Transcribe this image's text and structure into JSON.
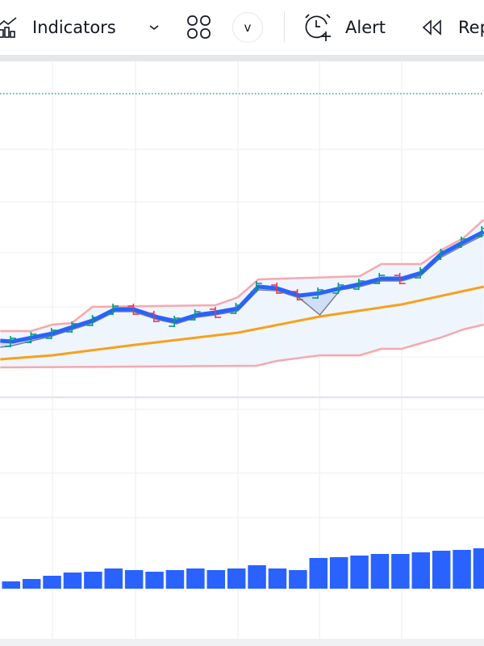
{
  "toolbar": {
    "indicators_label": "Indicators",
    "template_button_label": "v",
    "alert_label": "Alert",
    "replay_label": "Rep",
    "icons": [
      "indicators-icon",
      "chevron-down-icon",
      "layout-grid-icon",
      "alarm-clock-plus-icon",
      "rewind-icon"
    ]
  },
  "chart_data": {
    "type": "ohlc",
    "grid": true,
    "colors": {
      "up": "#089981",
      "down": "#f23645",
      "ma_fast": "#2962ff",
      "ma_slow": "#f7a01c",
      "band": "#f7a8ad",
      "band_fill": "#eef5fc",
      "volume": "#2962ff",
      "price_line": "#26a69a"
    },
    "price_line": 384,
    "candles": [
      {
        "o": 71,
        "c": 81
      },
      {
        "o": 76,
        "c": 86
      },
      {
        "o": 81,
        "c": 91
      },
      {
        "o": 89,
        "c": 99
      },
      {
        "o": 97,
        "c": 107
      },
      {
        "o": 111,
        "c": 121
      },
      {
        "o": 121,
        "c": 111
      },
      {
        "o": 112,
        "c": 102
      },
      {
        "o": 96,
        "c": 106
      },
      {
        "o": 104,
        "c": 114
      },
      {
        "o": 117,
        "c": 107
      },
      {
        "o": 112,
        "c": 122
      },
      {
        "o": 139,
        "c": 149
      },
      {
        "o": 147,
        "c": 137
      },
      {
        "o": 139,
        "c": 129
      },
      {
        "o": 131,
        "c": 141
      },
      {
        "o": 137,
        "c": 147
      },
      {
        "o": 142,
        "c": 152
      },
      {
        "o": 149,
        "c": 159
      },
      {
        "o": 159,
        "c": 149
      },
      {
        "o": 156,
        "c": 166
      },
      {
        "o": 179,
        "c": 189
      },
      {
        "o": 194,
        "c": 204
      },
      {
        "o": 207,
        "c": 217
      }
    ],
    "ma_fast": [
      [
        -0.5,
        78
      ],
      [
        0.1,
        77
      ],
      [
        2.05,
        87
      ],
      [
        4,
        103
      ],
      [
        5.1,
        117
      ],
      [
        6,
        117
      ],
      [
        7.2,
        107
      ],
      [
        8.1,
        102
      ],
      [
        9.1,
        110
      ],
      [
        10,
        113
      ],
      [
        11.1,
        118
      ],
      [
        12.1,
        145
      ],
      [
        13,
        143
      ],
      [
        14.1,
        134
      ],
      [
        15.1,
        137
      ],
      [
        16.1,
        143
      ],
      [
        17.05,
        148
      ],
      [
        18.1,
        155
      ],
      [
        19.1,
        155
      ],
      [
        20.04,
        162
      ],
      [
        21,
        185
      ],
      [
        22.1,
        200
      ],
      [
        23.1,
        213
      ]
    ],
    "ma_gray": [
      [
        -0.5,
        70
      ],
      [
        0.1,
        72
      ],
      [
        2.05,
        84
      ],
      [
        4,
        100
      ],
      [
        5.1,
        114
      ],
      [
        6,
        114
      ],
      [
        7.2,
        104
      ],
      [
        8.1,
        99
      ],
      [
        9.1,
        107
      ],
      [
        10,
        110
      ],
      [
        11.1,
        115
      ],
      [
        12.1,
        141
      ],
      [
        13,
        140
      ],
      [
        14.1,
        131
      ],
      [
        15.1,
        110
      ],
      [
        16.1,
        141
      ],
      [
        17.05,
        145
      ],
      [
        18.1,
        152
      ],
      [
        19.1,
        152
      ],
      [
        20.04,
        159
      ],
      [
        21,
        181
      ],
      [
        22.1,
        196
      ],
      [
        23.1,
        209
      ]
    ],
    "band_upper": [
      [
        -0.5,
        90
      ],
      [
        1,
        90
      ],
      [
        2.05,
        98
      ],
      [
        3,
        100
      ],
      [
        4,
        120
      ],
      [
        10,
        122
      ],
      [
        11.1,
        132
      ],
      [
        12.1,
        154
      ],
      [
        17.05,
        158
      ],
      [
        18.1,
        173
      ],
      [
        20.04,
        173
      ],
      [
        21,
        190
      ],
      [
        22.1,
        205
      ],
      [
        23.1,
        228
      ]
    ],
    "band_lower": [
      [
        -0.5,
        45
      ],
      [
        12,
        47
      ],
      [
        13,
        53
      ],
      [
        15.1,
        60
      ],
      [
        17.05,
        60
      ],
      [
        18.1,
        68
      ],
      [
        19.1,
        68
      ],
      [
        20.04,
        75
      ],
      [
        21,
        82
      ],
      [
        22.1,
        92
      ],
      [
        23.1,
        98
      ]
    ],
    "ma_slow": [
      [
        -0.5,
        55
      ],
      [
        2.05,
        60
      ],
      [
        6.1,
        73
      ],
      [
        11.1,
        88
      ],
      [
        15.1,
        108
      ],
      [
        19.1,
        123
      ],
      [
        23.1,
        145
      ]
    ],
    "volume": [
      9,
      12,
      16,
      20,
      21,
      25,
      23,
      21,
      23,
      25,
      23,
      25,
      29,
      25,
      23,
      38,
      39,
      41,
      43,
      43,
      45,
      47,
      48,
      50
    ]
  }
}
